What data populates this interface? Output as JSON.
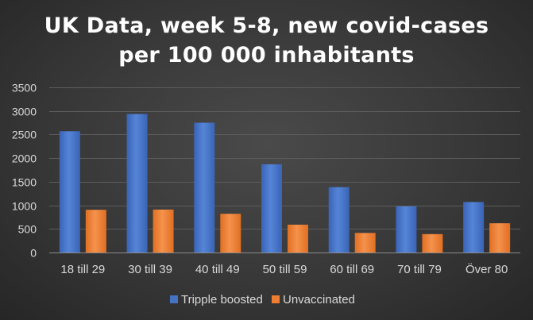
{
  "chart_data": {
    "type": "bar",
    "title_lines": [
      "UK Data, week 5-8, new covid-cases",
      "per 100 000 inhabitants"
    ],
    "categories": [
      "18 till 29",
      "30 till 39",
      "40 till 49",
      "50 till 59",
      "60 till 69",
      "70 till 79",
      "Över 80"
    ],
    "series": [
      {
        "name": "Tripple boosted",
        "color": "#4472c4",
        "values": [
          2570,
          2935,
          2750,
          1870,
          1385,
          980,
          1070
        ]
      },
      {
        "name": "Unvaccinated",
        "color": "#ed7d31",
        "values": [
          905,
          910,
          820,
          590,
          415,
          390,
          620
        ]
      }
    ],
    "xlabel": "",
    "ylabel": "",
    "ylim": [
      0,
      3500
    ],
    "yticks": [
      0,
      500,
      1000,
      1500,
      2000,
      2500,
      3000,
      3500
    ],
    "grid": true,
    "legend_position": "bottom"
  }
}
